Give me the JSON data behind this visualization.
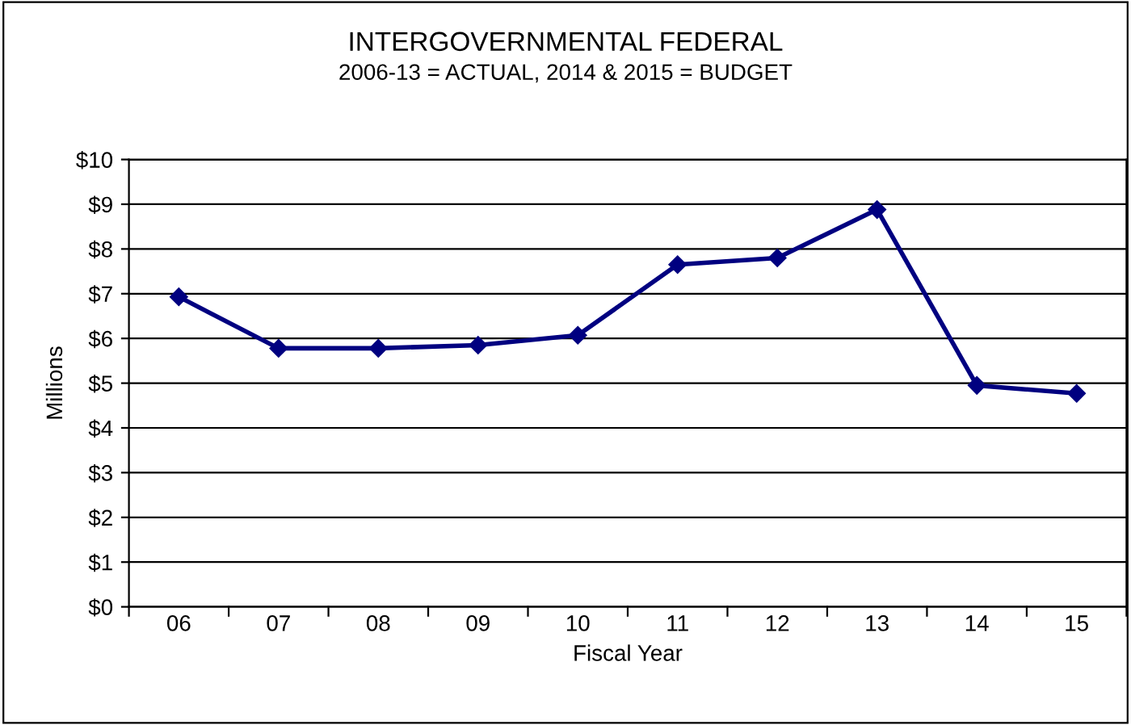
{
  "chart_data": {
    "type": "line",
    "title": "INTERGOVERNMENTAL FEDERAL",
    "subtitle": "2006-13 = ACTUAL, 2014 & 2015 = BUDGET",
    "xlabel": "Fiscal Year",
    "ylabel": "Millions",
    "categories": [
      "06",
      "07",
      "08",
      "09",
      "10",
      "11",
      "12",
      "13",
      "14",
      "15"
    ],
    "series": [
      {
        "color": "#000080",
        "values": [
          6.93,
          5.78,
          5.78,
          5.85,
          6.07,
          7.65,
          7.8,
          8.88,
          4.95,
          4.77
        ]
      }
    ],
    "ylim": [
      0,
      10
    ],
    "yticks": [
      {
        "value": 0,
        "label": "$0"
      },
      {
        "value": 1,
        "label": "$1"
      },
      {
        "value": 2,
        "label": "$2"
      },
      {
        "value": 3,
        "label": "$3"
      },
      {
        "value": 4,
        "label": "$4"
      },
      {
        "value": 5,
        "label": "$5"
      },
      {
        "value": 6,
        "label": "$6"
      },
      {
        "value": 7,
        "label": "$7"
      },
      {
        "value": 8,
        "label": "$8"
      },
      {
        "value": 9,
        "label": "$9"
      },
      {
        "value": 10,
        "label": "$10"
      }
    ],
    "grid": "y",
    "marker": "diamond",
    "line_style": "solid"
  }
}
